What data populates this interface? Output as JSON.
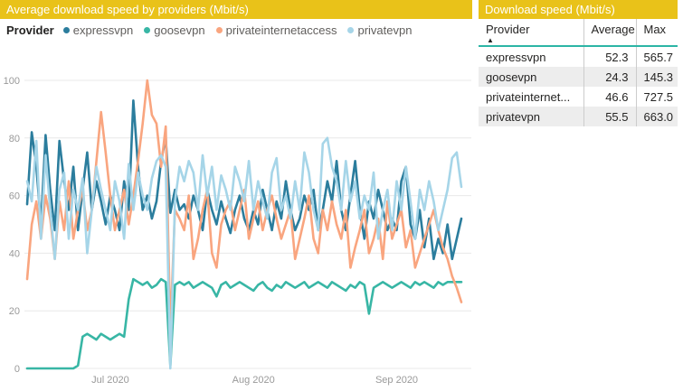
{
  "chart": {
    "title": "Average download speed by providers (Mbit/s)"
  },
  "chart_data": {
    "type": "line",
    "title": "Average download speed by providers (Mbit/s)",
    "legend_title": "Provider",
    "legend_position": "top",
    "grid": "horizontal",
    "ylim": [
      0,
      100
    ],
    "y_ticks": [
      0,
      20,
      40,
      60,
      80,
      100
    ],
    "x_unit": "day",
    "n_points": 95,
    "x_ticks": [
      {
        "index": 18,
        "label": "Jul 2020"
      },
      {
        "index": 49,
        "label": "Aug 2020"
      },
      {
        "index": 80,
        "label": "Sep 2020"
      }
    ],
    "series": [
      {
        "name": "expressvpn",
        "color": "#2b7d9d",
        "values": [
          57,
          82,
          70,
          50,
          81,
          62,
          48,
          79,
          65,
          55,
          70,
          48,
          62,
          75,
          55,
          65,
          58,
          50,
          60,
          55,
          48,
          65,
          55,
          93,
          70,
          55,
          60,
          52,
          58,
          72,
          80,
          54,
          62,
          55,
          57,
          52,
          60,
          55,
          48,
          62,
          55,
          50,
          58,
          52,
          47,
          55,
          60,
          52,
          48,
          55,
          50,
          62,
          55,
          48,
          58,
          52,
          65,
          55,
          48,
          52,
          60,
          55,
          62,
          48,
          55,
          65,
          58,
          72,
          55,
          48,
          60,
          72,
          55,
          45,
          58,
          52,
          62,
          55,
          48,
          52,
          48,
          65,
          70,
          50,
          45,
          55,
          42,
          52,
          38,
          45,
          40,
          50,
          38,
          45,
          52
        ]
      },
      {
        "name": "goosevpn",
        "color": "#38b6a5",
        "values": [
          0,
          0,
          0,
          0,
          0,
          0,
          0,
          0,
          0,
          0,
          0,
          1,
          11,
          12,
          11,
          10,
          12,
          11,
          10,
          11,
          12,
          11,
          24,
          31,
          30,
          29,
          30,
          28,
          29,
          31,
          30,
          1,
          29,
          30,
          29,
          30,
          28,
          29,
          30,
          29,
          28,
          25,
          29,
          30,
          28,
          29,
          30,
          29,
          28,
          27,
          29,
          30,
          28,
          27,
          29,
          28,
          30,
          29,
          28,
          29,
          30,
          28,
          29,
          30,
          29,
          28,
          30,
          29,
          28,
          27,
          29,
          28,
          30,
          29,
          19,
          28,
          29,
          30,
          29,
          28,
          29,
          30,
          29,
          28,
          30,
          29,
          30,
          29,
          28,
          30,
          29,
          30,
          30,
          30,
          30
        ]
      },
      {
        "name": "privateinternetaccess",
        "color": "#f9a57f",
        "values": [
          31,
          50,
          58,
          45,
          60,
          52,
          38,
          58,
          48,
          65,
          45,
          55,
          62,
          48,
          55,
          72,
          89,
          75,
          60,
          48,
          55,
          62,
          50,
          60,
          72,
          85,
          100,
          88,
          85,
          70,
          84,
          13,
          55,
          52,
          48,
          60,
          38,
          45,
          55,
          62,
          40,
          35,
          50,
          55,
          58,
          48,
          55,
          62,
          45,
          52,
          58,
          48,
          55,
          60,
          52,
          45,
          50,
          55,
          38,
          45,
          52,
          60,
          45,
          40,
          55,
          48,
          58,
          50,
          45,
          55,
          35,
          42,
          48,
          55,
          40,
          45,
          52,
          38,
          58,
          45,
          50,
          55,
          42,
          48,
          35,
          40,
          45,
          50,
          55,
          48,
          42,
          38,
          32,
          28,
          23
        ]
      },
      {
        "name": "privatevpn",
        "color": "#a6d5e8",
        "values": [
          65,
          58,
          79,
          45,
          74,
          55,
          38,
          62,
          68,
          45,
          62,
          55,
          66,
          40,
          55,
          70,
          62,
          55,
          48,
          65,
          58,
          45,
          71,
          55,
          68,
          60,
          55,
          66,
          72,
          74,
          70,
          0,
          58,
          70,
          65,
          72,
          68,
          55,
          74,
          60,
          70,
          55,
          67,
          62,
          55,
          70,
          65,
          58,
          72,
          55,
          65,
          58,
          52,
          68,
          73,
          55,
          60,
          52,
          65,
          55,
          75,
          68,
          55,
          48,
          78,
          80,
          70,
          65,
          55,
          72,
          58,
          65,
          52,
          60,
          55,
          68,
          45,
          55,
          62,
          48,
          65,
          55,
          70,
          58,
          45,
          62,
          55,
          65,
          58,
          48,
          55,
          62,
          73,
          75,
          63
        ]
      }
    ]
  },
  "table": {
    "title": "Download speed (Mbit/s)",
    "columns": [
      "Provider",
      "Average",
      "Max"
    ],
    "sort_icon": "▲",
    "rows": [
      [
        "expressvpn",
        "52.3",
        "565.7"
      ],
      [
        "goosevpn",
        "24.3",
        "145.3"
      ],
      [
        "privateinternet...",
        "46.6",
        "727.5"
      ],
      [
        "privatevpn",
        "55.5",
        "663.0"
      ]
    ]
  },
  "colors": {
    "accent_gold": "#e9c219",
    "header_underline": "#2cb5a5",
    "gridline": "#e8e8e8",
    "axis_text": "#999999",
    "alt_row": "#ededed"
  }
}
